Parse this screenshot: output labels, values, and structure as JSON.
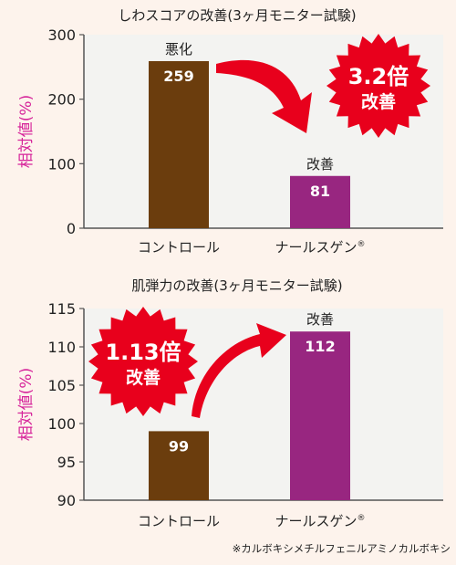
{
  "chart_data": [
    {
      "type": "bar",
      "title": "しわスコアの改善(3ヶ月モニター試験)",
      "ylabel": "相対値(%)",
      "categories": [
        "コントロール",
        "ナールスゲン"
      ],
      "category_mark": "®",
      "values": [
        259,
        81
      ],
      "value_labels": [
        "259",
        "81"
      ],
      "bar_annotations": [
        "悪化",
        "改善"
      ],
      "colors": [
        "#6b3d0d",
        "#982680"
      ],
      "ylim": [
        0,
        300
      ],
      "yticks": [
        0,
        100,
        200,
        300
      ],
      "grid": false,
      "badge": {
        "line1": "3.2倍",
        "line2": "改善",
        "color": "#e8001c"
      }
    },
    {
      "type": "bar",
      "title": "肌弾力の改善(3ヶ月モニター試験)",
      "ylabel": "相対値(%)",
      "categories": [
        "コントロール",
        "ナールスゲン"
      ],
      "category_mark": "®",
      "values": [
        99,
        112
      ],
      "value_labels": [
        "99",
        "112"
      ],
      "bar_annotations": [
        "",
        "改善"
      ],
      "colors": [
        "#6b3d0d",
        "#982680"
      ],
      "ylim": [
        90,
        115
      ],
      "yticks": [
        90,
        95,
        100,
        105,
        110,
        115
      ],
      "grid": false,
      "badge": {
        "line1": "1.13倍",
        "line2": "改善",
        "color": "#e8001c"
      }
    }
  ],
  "footnote": "※カルボキシメチルフェニルアミノカルボキシ",
  "colors": {
    "background": "#fdf3ec",
    "plot_area": "#f3f3f1",
    "ylabel": "#d6249a",
    "arrow": "#e8001c"
  }
}
